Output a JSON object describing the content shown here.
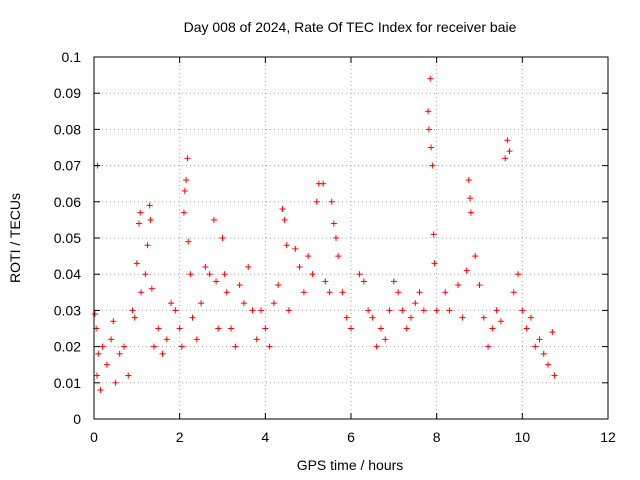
{
  "chart_data": {
    "type": "scatter",
    "title": "Day 008 of 2024, Rate Of TEC Index for receiver baie",
    "xlabel": "GPS time / hours",
    "ylabel": "ROTI / TECUs",
    "xlim": [
      0,
      12
    ],
    "ylim": [
      0,
      0.1
    ],
    "x_ticks": [
      "0",
      "2",
      "4",
      "6",
      "8",
      "10",
      "12"
    ],
    "y_ticks": [
      "0",
      "0.01",
      "0.02",
      "0.03",
      "0.04",
      "0.05",
      "0.06",
      "0.07",
      "0.08",
      "0.09",
      "0.1"
    ],
    "x_tick_values": [
      0,
      2,
      4,
      6,
      8,
      10,
      12
    ],
    "y_tick_values": [
      0,
      0.01,
      0.02,
      0.03,
      0.04,
      0.05,
      0.06,
      0.07,
      0.08,
      0.09,
      0.1
    ],
    "grid": true,
    "marker": "+",
    "series": [
      {
        "name": "ROTI",
        "color": "#ff0000",
        "points": [
          [
            0.02,
            0.029
          ],
          [
            0.05,
            0.025
          ],
          [
            0.07,
            0.012
          ],
          [
            0.08,
            0.07
          ],
          [
            0.1,
            0.018
          ],
          [
            0.15,
            0.008
          ],
          [
            0.2,
            0.02
          ],
          [
            0.3,
            0.015
          ],
          [
            0.4,
            0.022
          ],
          [
            0.45,
            0.027
          ],
          [
            0.5,
            0.01
          ],
          [
            0.6,
            0.018
          ],
          [
            0.7,
            0.02
          ],
          [
            0.8,
            0.012
          ],
          [
            0.9,
            0.03
          ],
          [
            0.95,
            0.028
          ],
          [
            1.0,
            0.043
          ],
          [
            1.05,
            0.054
          ],
          [
            1.08,
            0.057
          ],
          [
            1.1,
            0.035
          ],
          [
            1.2,
            0.04
          ],
          [
            1.25,
            0.048
          ],
          [
            1.3,
            0.059
          ],
          [
            1.32,
            0.055
          ],
          [
            1.35,
            0.036
          ],
          [
            1.4,
            0.02
          ],
          [
            1.5,
            0.025
          ],
          [
            1.6,
            0.018
          ],
          [
            1.7,
            0.022
          ],
          [
            1.8,
            0.032
          ],
          [
            1.9,
            0.03
          ],
          [
            2.0,
            0.025
          ],
          [
            2.05,
            0.02
          ],
          [
            2.1,
            0.057
          ],
          [
            2.12,
            0.063
          ],
          [
            2.15,
            0.066
          ],
          [
            2.18,
            0.072
          ],
          [
            2.2,
            0.049
          ],
          [
            2.25,
            0.04
          ],
          [
            2.3,
            0.028
          ],
          [
            2.4,
            0.022
          ],
          [
            2.5,
            0.032
          ],
          [
            2.6,
            0.042
          ],
          [
            2.7,
            0.04
          ],
          [
            2.8,
            0.055
          ],
          [
            2.85,
            0.038
          ],
          [
            2.9,
            0.025
          ],
          [
            3.0,
            0.05
          ],
          [
            3.05,
            0.04
          ],
          [
            3.1,
            0.035
          ],
          [
            3.2,
            0.025
          ],
          [
            3.3,
            0.02
          ],
          [
            3.4,
            0.037
          ],
          [
            3.5,
            0.032
          ],
          [
            3.6,
            0.042
          ],
          [
            3.7,
            0.03
          ],
          [
            3.8,
            0.022
          ],
          [
            3.9,
            0.03
          ],
          [
            4.0,
            0.025
          ],
          [
            4.1,
            0.02
          ],
          [
            4.2,
            0.032
          ],
          [
            4.3,
            0.037
          ],
          [
            4.4,
            0.058
          ],
          [
            4.45,
            0.055
          ],
          [
            4.5,
            0.048
          ],
          [
            4.55,
            0.03
          ],
          [
            4.7,
            0.047
          ],
          [
            4.8,
            0.042
          ],
          [
            4.9,
            0.035
          ],
          [
            5.0,
            0.045
          ],
          [
            5.1,
            0.04
          ],
          [
            5.2,
            0.06
          ],
          [
            5.25,
            0.065
          ],
          [
            5.35,
            0.065
          ],
          [
            5.4,
            0.038
          ],
          [
            5.5,
            0.035
          ],
          [
            5.55,
            0.06
          ],
          [
            5.6,
            0.054
          ],
          [
            5.65,
            0.05
          ],
          [
            5.7,
            0.045
          ],
          [
            5.8,
            0.035
          ],
          [
            5.9,
            0.028
          ],
          [
            6.0,
            0.025
          ],
          [
            6.2,
            0.04
          ],
          [
            6.3,
            0.038
          ],
          [
            6.4,
            0.03
          ],
          [
            6.5,
            0.028
          ],
          [
            6.6,
            0.02
          ],
          [
            6.7,
            0.025
          ],
          [
            6.8,
            0.022
          ],
          [
            6.9,
            0.03
          ],
          [
            7.0,
            0.038
          ],
          [
            7.1,
            0.035
          ],
          [
            7.2,
            0.03
          ],
          [
            7.3,
            0.025
          ],
          [
            7.4,
            0.028
          ],
          [
            7.5,
            0.032
          ],
          [
            7.6,
            0.035
          ],
          [
            7.7,
            0.03
          ],
          [
            7.8,
            0.085
          ],
          [
            7.82,
            0.08
          ],
          [
            7.85,
            0.094
          ],
          [
            7.87,
            0.075
          ],
          [
            7.9,
            0.07
          ],
          [
            7.93,
            0.051
          ],
          [
            7.95,
            0.043
          ],
          [
            8.0,
            0.03
          ],
          [
            8.2,
            0.035
          ],
          [
            8.3,
            0.03
          ],
          [
            8.5,
            0.037
          ],
          [
            8.6,
            0.028
          ],
          [
            8.7,
            0.041
          ],
          [
            8.75,
            0.066
          ],
          [
            8.78,
            0.061
          ],
          [
            8.8,
            0.057
          ],
          [
            8.9,
            0.045
          ],
          [
            9.0,
            0.037
          ],
          [
            9.1,
            0.028
          ],
          [
            9.2,
            0.02
          ],
          [
            9.3,
            0.025
          ],
          [
            9.4,
            0.03
          ],
          [
            9.5,
            0.027
          ],
          [
            9.6,
            0.072
          ],
          [
            9.65,
            0.077
          ],
          [
            9.7,
            0.074
          ],
          [
            9.8,
            0.035
          ],
          [
            9.9,
            0.04
          ],
          [
            10.0,
            0.03
          ],
          [
            10.1,
            0.025
          ],
          [
            10.2,
            0.028
          ],
          [
            10.3,
            0.02
          ],
          [
            10.4,
            0.022
          ],
          [
            10.5,
            0.018
          ],
          [
            10.6,
            0.015
          ],
          [
            10.7,
            0.024
          ],
          [
            10.75,
            0.012
          ]
        ]
      }
    ]
  }
}
